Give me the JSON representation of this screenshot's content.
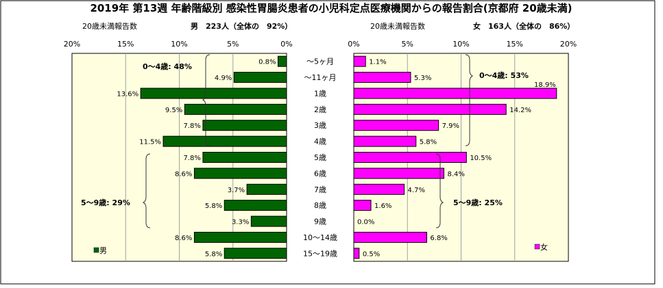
{
  "title": "2019年 第13週 年齢階級別 感染性胃腸炎患者の小児科定点医療機関からの報告割合(京都府 20歳未満)",
  "subtitle_left": {
    "metric_label": "20歳未満報告数",
    "summary": "男　223人（全体の　92%）"
  },
  "subtitle_right": {
    "metric_label": "20歳未満報告数",
    "summary": "女　163人（全体の　86%）"
  },
  "chart_data": [
    {
      "type": "bar",
      "orientation": "horizontal",
      "direction": "right-to-left",
      "categories": [
        "～5ヶ月",
        "～11ヶ月",
        "1歳",
        "2歳",
        "3歳",
        "4歳",
        "5歳",
        "6歳",
        "7歳",
        "8歳",
        "9歳",
        "10～14歳",
        "15～19歳"
      ],
      "series": [
        {
          "name": "男",
          "values": [
            0.8,
            4.9,
            13.6,
            9.5,
            7.8,
            11.5,
            7.8,
            8.6,
            3.7,
            5.8,
            3.3,
            8.6,
            5.8
          ],
          "labels": [
            "0.8%",
            "4.9%",
            "13.6%",
            "9.5%",
            "7.8%",
            "11.5%",
            "7.8%",
            "8.6%",
            "3.7%",
            "5.8%",
            "3.3%",
            "8.6%",
            "5.8%"
          ],
          "color": "#006400"
        }
      ],
      "xlim": [
        0,
        20
      ],
      "ticks": [
        "20%",
        "15%",
        "10%",
        "5%",
        "0%"
      ],
      "grid": true,
      "legend": "bottom-left",
      "annotations": [
        "0～4歳: 48%",
        "5～9歳: 29%"
      ],
      "plot_bg": "#FFFFE0"
    },
    {
      "type": "bar",
      "orientation": "horizontal",
      "direction": "left-to-right",
      "categories": [
        "～5ヶ月",
        "～11ヶ月",
        "1歳",
        "2歳",
        "3歳",
        "4歳",
        "5歳",
        "6歳",
        "7歳",
        "8歳",
        "9歳",
        "10～14歳",
        "15～19歳"
      ],
      "series": [
        {
          "name": "女",
          "values": [
            1.1,
            5.3,
            18.9,
            14.2,
            7.9,
            5.8,
            10.5,
            8.4,
            4.7,
            1.6,
            0.0,
            6.8,
            0.5
          ],
          "labels": [
            "1.1%",
            "5.3%",
            "18.9%",
            "14.2%",
            "7.9%",
            "5.8%",
            "10.5%",
            "8.4%",
            "4.7%",
            "1.6%",
            "0.0%",
            "6.8%",
            "0.5%"
          ],
          "color": "#FF00FF"
        }
      ],
      "xlim": [
        0,
        20
      ],
      "ticks": [
        "0%",
        "5%",
        "10%",
        "15%",
        "20%"
      ],
      "grid": true,
      "legend": "bottom-right",
      "annotations": [
        "0～4歳: 53%",
        "5～9歳: 25%"
      ],
      "plot_bg": "#FFFFE0"
    }
  ]
}
